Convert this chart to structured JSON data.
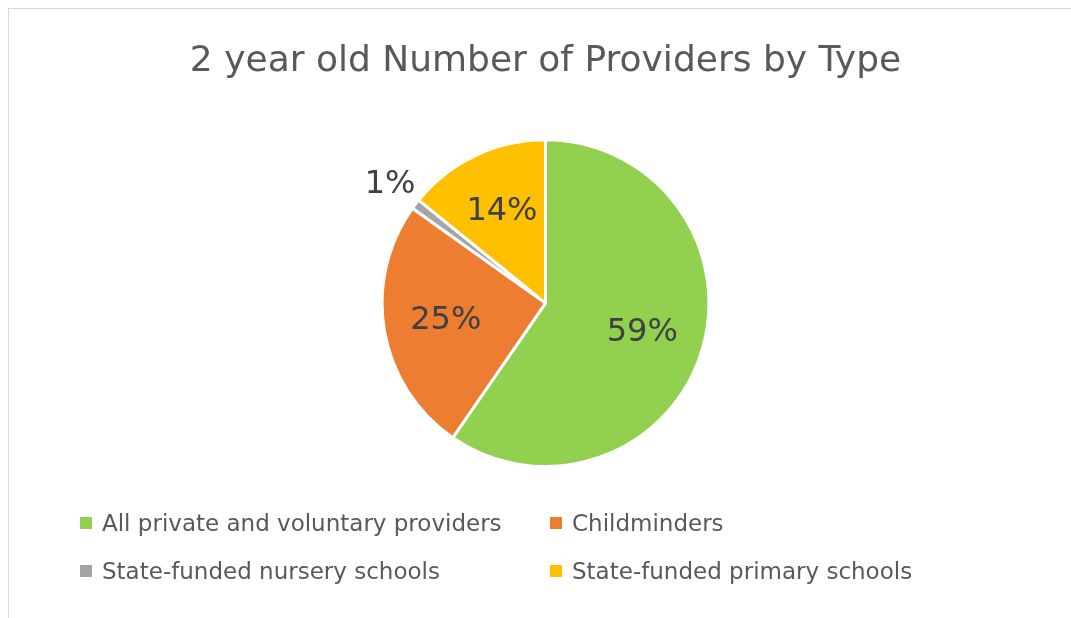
{
  "chart_data": {
    "type": "pie",
    "title": "2 year old Number of Providers by Type",
    "categories": [
      "All private and voluntary providers",
      "Childminders",
      "State-funded nursery schools",
      "State-funded primary schools"
    ],
    "values": [
      59,
      25,
      1,
      14
    ],
    "colors": [
      "#92d050",
      "#ed7d31",
      "#a5a5a5",
      "#ffc000"
    ],
    "value_labels": [
      "59%",
      "25%",
      "1%",
      "14%"
    ],
    "legend": "bottom"
  }
}
